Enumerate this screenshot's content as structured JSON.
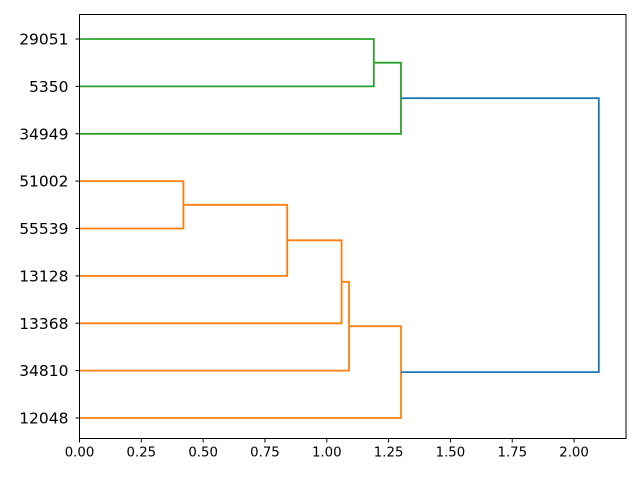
{
  "figure": {
    "background": "#ffffff",
    "plot_border_color": "#000000"
  },
  "chart_data": {
    "type": "dendrogram",
    "orientation": "right",
    "title": "",
    "leaves": [
      {
        "id": 0,
        "label": "29051"
      },
      {
        "id": 1,
        "label": "5350"
      },
      {
        "id": 2,
        "label": "34949"
      },
      {
        "id": 3,
        "label": "51002"
      },
      {
        "id": 4,
        "label": "55539"
      },
      {
        "id": 5,
        "label": "13128"
      },
      {
        "id": 6,
        "label": "13368"
      },
      {
        "id": 7,
        "label": "34810"
      },
      {
        "id": 8,
        "label": "12048"
      }
    ],
    "merges": [
      {
        "id": 9,
        "children": [
          3,
          4
        ],
        "distance": 0.42,
        "color": "#ff7f0e"
      },
      {
        "id": 10,
        "children": [
          9,
          5
        ],
        "distance": 0.84,
        "color": "#ff7f0e"
      },
      {
        "id": 11,
        "children": [
          10,
          6
        ],
        "distance": 1.06,
        "color": "#ff7f0e"
      },
      {
        "id": 12,
        "children": [
          11,
          7
        ],
        "distance": 1.09,
        "color": "#ff7f0e"
      },
      {
        "id": 13,
        "children": [
          0,
          1
        ],
        "distance": 1.19,
        "color": "#2ca02c"
      },
      {
        "id": 14,
        "children": [
          13,
          2
        ],
        "distance": 1.3,
        "color": "#2ca02c"
      },
      {
        "id": 15,
        "children": [
          12,
          8
        ],
        "distance": 1.3,
        "color": "#ff7f0e"
      },
      {
        "id": 16,
        "children": [
          14,
          15
        ],
        "distance": 2.1,
        "color": "#1f77b4"
      }
    ],
    "x_axis": {
      "lim": [
        0,
        2.21
      ],
      "grid": false,
      "ticks": [
        {
          "value": 0.0,
          "label": "0.00"
        },
        {
          "value": 0.25,
          "label": "0.25"
        },
        {
          "value": 0.5,
          "label": "0.50"
        },
        {
          "value": 0.75,
          "label": "0.75"
        },
        {
          "value": 1.0,
          "label": "1.00"
        },
        {
          "value": 1.25,
          "label": "1.25"
        },
        {
          "value": 1.5,
          "label": "1.50"
        },
        {
          "value": 1.75,
          "label": "1.75"
        },
        {
          "value": 2.0,
          "label": "2.00"
        }
      ]
    },
    "colors": {
      "cluster_orange": "#ff7f0e",
      "cluster_green": "#2ca02c",
      "above_threshold_blue": "#1f77b4"
    },
    "line_width": 1.8
  }
}
